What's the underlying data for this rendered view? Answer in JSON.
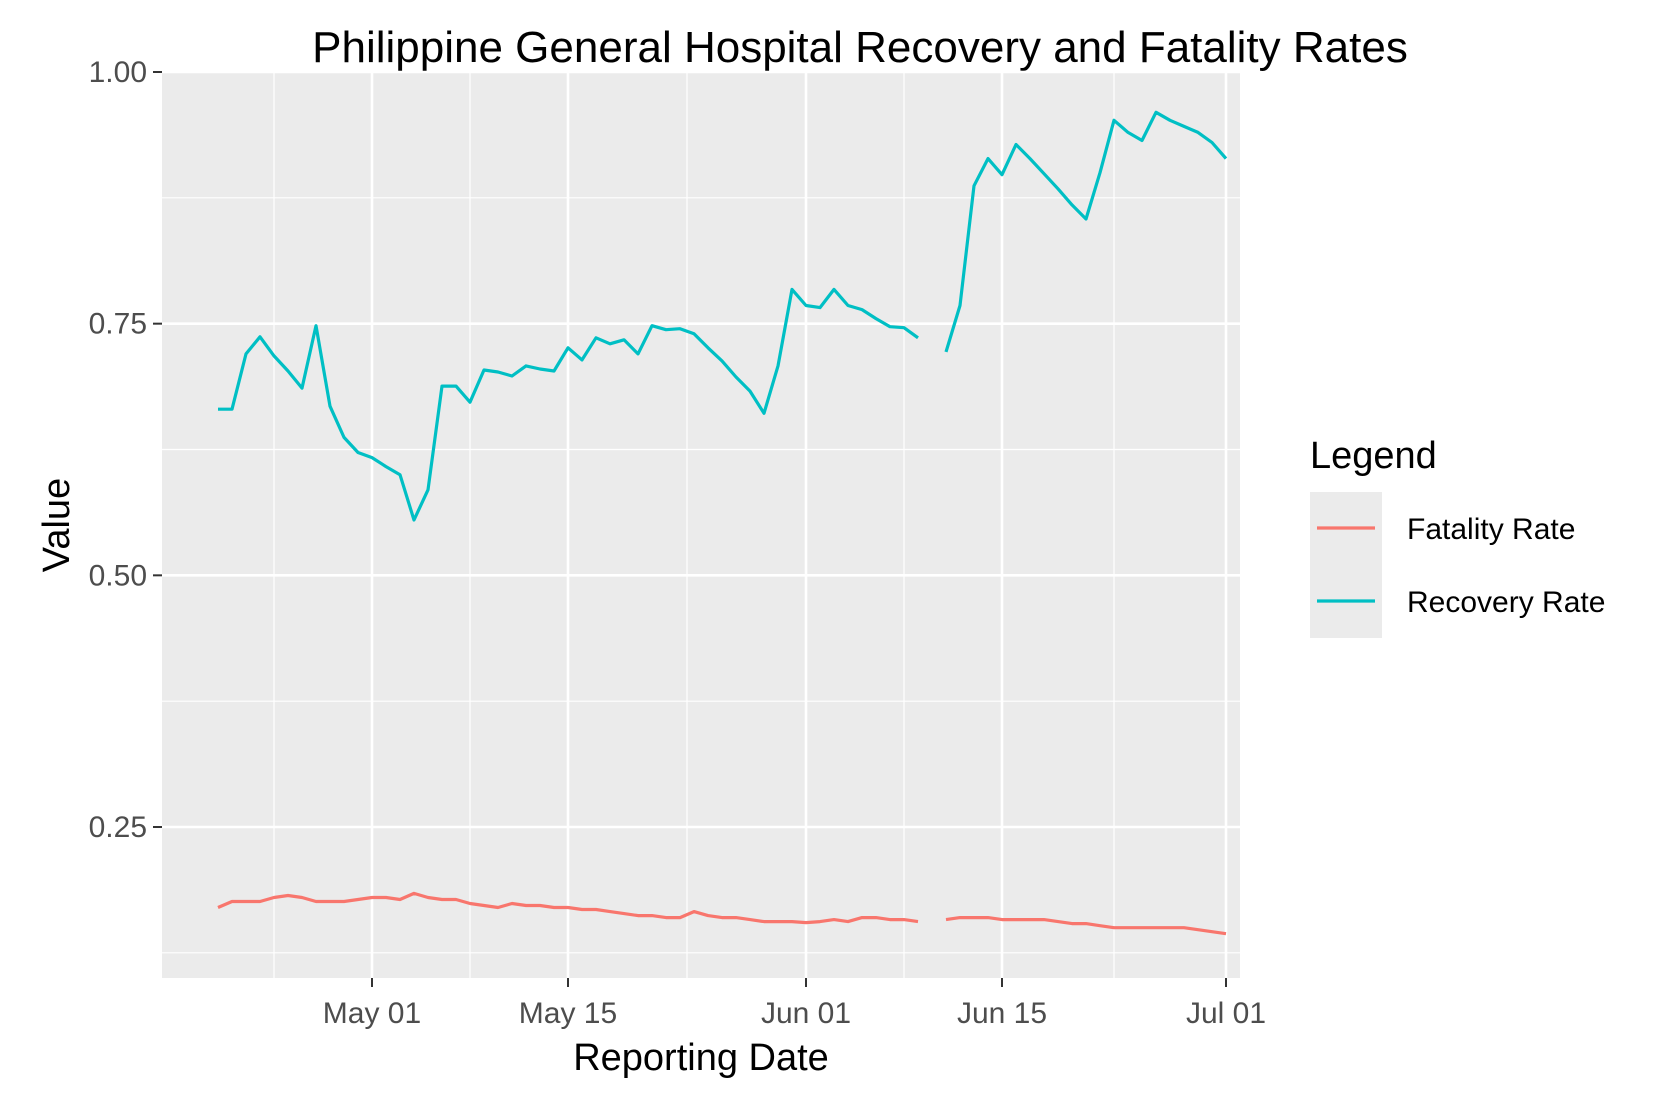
{
  "chart_data": {
    "type": "line",
    "title": "Philippine General Hospital Recovery and Fatality Rates",
    "xlabel": "Reporting Date",
    "ylabel": "Value",
    "x_axis": {
      "type": "date",
      "range": [
        "2020-04-16",
        "2020-07-02"
      ],
      "ticks": [
        "2020-05-01",
        "2020-05-15",
        "2020-06-01",
        "2020-06-15",
        "2020-07-01"
      ],
      "tick_labels": [
        "May 01",
        "May 15",
        "Jun 01",
        "Jun 15",
        "Jul 01"
      ]
    },
    "y_axis": {
      "range": [
        0.1,
        1.0
      ],
      "ticks": [
        0.25,
        0.5,
        0.75,
        1.0
      ],
      "tick_labels": [
        "0.25",
        "0.50",
        "0.75",
        "1.00"
      ]
    },
    "grid": true,
    "background": "#ebebeb",
    "legend": {
      "title": "Legend",
      "position": "right",
      "entries": [
        "Fatality Rate",
        "Recovery Rate"
      ]
    },
    "series": [
      {
        "name": "Fatality Rate",
        "color": "#f8766d",
        "points": [
          [
            "2020-04-20",
            0.17
          ],
          [
            "2020-04-21",
            0.176
          ],
          [
            "2020-04-22",
            0.176
          ],
          [
            "2020-04-23",
            0.176
          ],
          [
            "2020-04-24",
            0.18
          ],
          [
            "2020-04-25",
            0.182
          ],
          [
            "2020-04-26",
            0.18
          ],
          [
            "2020-04-27",
            0.176
          ],
          [
            "2020-04-28",
            0.176
          ],
          [
            "2020-04-29",
            0.176
          ],
          [
            "2020-04-30",
            0.178
          ],
          [
            "2020-05-01",
            0.18
          ],
          [
            "2020-05-02",
            0.18
          ],
          [
            "2020-05-03",
            0.178
          ],
          [
            "2020-05-04",
            0.184
          ],
          [
            "2020-05-05",
            0.18
          ],
          [
            "2020-05-06",
            0.178
          ],
          [
            "2020-05-07",
            0.178
          ],
          [
            "2020-05-08",
            0.174
          ],
          [
            "2020-05-09",
            0.172
          ],
          [
            "2020-05-10",
            0.17
          ],
          [
            "2020-05-11",
            0.174
          ],
          [
            "2020-05-12",
            0.172
          ],
          [
            "2020-05-13",
            0.172
          ],
          [
            "2020-05-14",
            0.17
          ],
          [
            "2020-05-15",
            0.17
          ],
          [
            "2020-05-16",
            0.168
          ],
          [
            "2020-05-17",
            0.168
          ],
          [
            "2020-05-18",
            0.166
          ],
          [
            "2020-05-19",
            0.164
          ],
          [
            "2020-05-20",
            0.162
          ],
          [
            "2020-05-21",
            0.162
          ],
          [
            "2020-05-22",
            0.16
          ],
          [
            "2020-05-23",
            0.16
          ],
          [
            "2020-05-24",
            0.166
          ],
          [
            "2020-05-25",
            0.162
          ],
          [
            "2020-05-26",
            0.16
          ],
          [
            "2020-05-27",
            0.16
          ],
          [
            "2020-05-28",
            0.158
          ],
          [
            "2020-05-29",
            0.156
          ],
          [
            "2020-05-30",
            0.156
          ],
          [
            "2020-05-31",
            0.156
          ],
          [
            "2020-06-01",
            0.155
          ],
          [
            "2020-06-02",
            0.156
          ],
          [
            "2020-06-03",
            0.158
          ],
          [
            "2020-06-04",
            0.156
          ],
          [
            "2020-06-05",
            0.16
          ],
          [
            "2020-06-06",
            0.16
          ],
          [
            "2020-06-07",
            0.158
          ],
          [
            "2020-06-08",
            0.158
          ],
          [
            "2020-06-09",
            0.156
          ],
          null,
          [
            "2020-06-11",
            0.158
          ],
          [
            "2020-06-12",
            0.16
          ],
          [
            "2020-06-13",
            0.16
          ],
          [
            "2020-06-14",
            0.16
          ],
          [
            "2020-06-15",
            0.158
          ],
          [
            "2020-06-16",
            0.158
          ],
          [
            "2020-06-17",
            0.158
          ],
          [
            "2020-06-18",
            0.158
          ],
          [
            "2020-06-19",
            0.156
          ],
          [
            "2020-06-20",
            0.154
          ],
          [
            "2020-06-21",
            0.154
          ],
          [
            "2020-06-22",
            0.152
          ],
          [
            "2020-06-23",
            0.15
          ],
          [
            "2020-06-24",
            0.15
          ],
          [
            "2020-06-25",
            0.15
          ],
          [
            "2020-06-26",
            0.15
          ],
          [
            "2020-06-27",
            0.15
          ],
          [
            "2020-06-28",
            0.15
          ],
          [
            "2020-06-29",
            0.148
          ],
          [
            "2020-06-30",
            0.146
          ],
          [
            "2020-07-01",
            0.144
          ]
        ]
      },
      {
        "name": "Recovery Rate",
        "color": "#00bfc4",
        "points": [
          [
            "2020-04-20",
            0.665
          ],
          [
            "2020-04-21",
            0.665
          ],
          [
            "2020-04-22",
            0.72
          ],
          [
            "2020-04-23",
            0.737
          ],
          [
            "2020-04-24",
            0.718
          ],
          [
            "2020-04-25",
            0.703
          ],
          [
            "2020-04-26",
            0.686
          ],
          [
            "2020-04-27",
            0.748
          ],
          [
            "2020-04-28",
            0.668
          ],
          [
            "2020-04-29",
            0.637
          ],
          [
            "2020-04-30",
            0.622
          ],
          [
            "2020-05-01",
            0.617
          ],
          [
            "2020-05-02",
            0.608
          ],
          [
            "2020-05-03",
            0.6
          ],
          [
            "2020-05-04",
            0.555
          ],
          [
            "2020-05-05",
            0.585
          ],
          [
            "2020-05-06",
            0.688
          ],
          [
            "2020-05-07",
            0.688
          ],
          [
            "2020-05-08",
            0.672
          ],
          [
            "2020-05-09",
            0.704
          ],
          [
            "2020-05-10",
            0.702
          ],
          [
            "2020-05-11",
            0.698
          ],
          [
            "2020-05-12",
            0.708
          ],
          [
            "2020-05-13",
            0.705
          ],
          [
            "2020-05-14",
            0.703
          ],
          [
            "2020-05-15",
            0.726
          ],
          [
            "2020-05-16",
            0.714
          ],
          [
            "2020-05-17",
            0.736
          ],
          [
            "2020-05-18",
            0.73
          ],
          [
            "2020-05-19",
            0.734
          ],
          [
            "2020-05-20",
            0.72
          ],
          [
            "2020-05-21",
            0.748
          ],
          [
            "2020-05-22",
            0.744
          ],
          [
            "2020-05-23",
            0.745
          ],
          [
            "2020-05-24",
            0.74
          ],
          [
            "2020-05-25",
            0.726
          ],
          [
            "2020-05-26",
            0.713
          ],
          [
            "2020-05-27",
            0.697
          ],
          [
            "2020-05-28",
            0.683
          ],
          [
            "2020-05-29",
            0.661
          ],
          [
            "2020-05-30",
            0.708
          ],
          [
            "2020-05-31",
            0.784
          ],
          [
            "2020-06-01",
            0.768
          ],
          [
            "2020-06-02",
            0.766
          ],
          [
            "2020-06-03",
            0.784
          ],
          [
            "2020-06-04",
            0.768
          ],
          [
            "2020-06-05",
            0.764
          ],
          [
            "2020-06-06",
            0.755
          ],
          [
            "2020-06-07",
            0.747
          ],
          [
            "2020-06-08",
            0.746
          ],
          [
            "2020-06-09",
            0.736
          ],
          null,
          [
            "2020-06-11",
            0.722
          ],
          [
            "2020-06-12",
            0.768
          ],
          [
            "2020-06-13",
            0.887
          ],
          [
            "2020-06-14",
            0.914
          ],
          [
            "2020-06-15",
            0.898
          ],
          [
            "2020-06-16",
            0.928
          ],
          [
            "2020-06-17",
            0.914
          ],
          [
            "2020-06-18",
            0.899
          ],
          [
            "2020-06-19",
            0.884
          ],
          [
            "2020-06-20",
            0.868
          ],
          [
            "2020-06-21",
            0.854
          ],
          [
            "2020-06-22",
            0.9
          ],
          [
            "2020-06-23",
            0.952
          ],
          [
            "2020-06-24",
            0.94
          ],
          [
            "2020-06-25",
            0.932
          ],
          [
            "2020-06-26",
            0.96
          ],
          [
            "2020-06-27",
            0.952
          ],
          [
            "2020-06-28",
            0.946
          ],
          [
            "2020-06-29",
            0.94
          ],
          [
            "2020-06-30",
            0.93
          ],
          [
            "2020-07-01",
            0.914
          ]
        ]
      }
    ]
  }
}
